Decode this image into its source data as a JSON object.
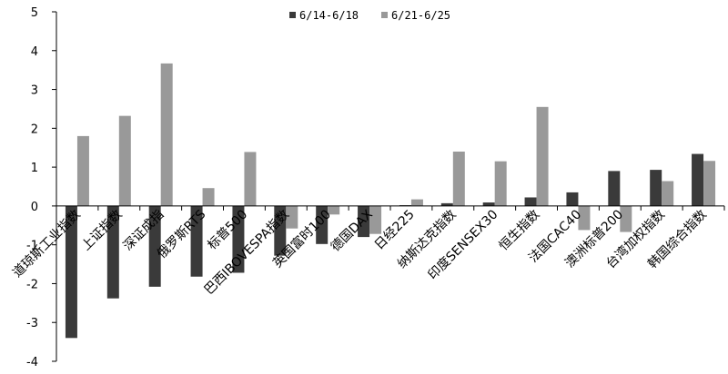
{
  "chart_data": {
    "type": "bar",
    "title": "",
    "xlabel": "",
    "ylabel": "",
    "ylim": [
      -4,
      5
    ],
    "yticks": [
      -4,
      -3,
      -2,
      -1,
      0,
      1,
      2,
      3,
      4,
      5
    ],
    "legend_position": "top-center",
    "grid": false,
    "categories": [
      "道琼斯工业指数",
      "上证指数",
      "深证成指",
      "俄罗斯RTS",
      "标普500",
      "巴西IBOVESPA指数",
      "英国富时100",
      "德国DAX",
      "日经225",
      "纳斯达克指数",
      "印度SENSEX30",
      "恒生指数",
      "法国CAC40",
      "澳洲标普200",
      "台湾加权指数",
      "韩国综合指数"
    ],
    "series": [
      {
        "name": "6/14-6/18",
        "color": "#3a3a3a",
        "values": [
          -3.4,
          -2.38,
          -2.08,
          -1.82,
          -1.72,
          -1.28,
          -0.98,
          -0.8,
          0.02,
          0.07,
          0.09,
          0.22,
          0.35,
          0.9,
          0.93,
          1.34
        ]
      },
      {
        "name": "6/21-6/25",
        "color": "#999999",
        "values": [
          1.8,
          2.32,
          3.67,
          0.46,
          1.39,
          -0.58,
          -0.22,
          -0.72,
          0.17,
          1.4,
          1.15,
          2.55,
          -0.62,
          -0.67,
          0.64,
          1.16
        ]
      }
    ]
  }
}
